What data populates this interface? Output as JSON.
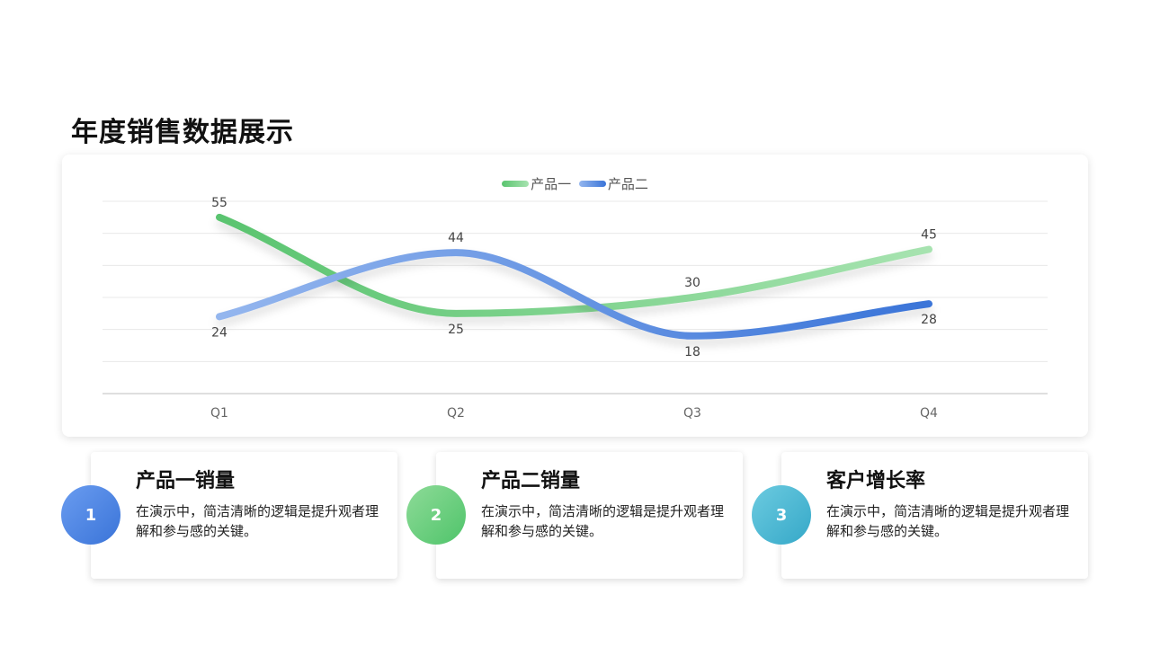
{
  "page": {
    "title": "年度销售数据展示"
  },
  "chart_data": {
    "type": "line",
    "categories": [
      "Q1",
      "Q2",
      "Q3",
      "Q4"
    ],
    "series": [
      {
        "name": "产品一",
        "values": [
          55,
          25,
          30,
          45
        ],
        "color_start": "#5ac46f",
        "color_end": "#a7e3b0"
      },
      {
        "name": "产品二",
        "values": [
          24,
          44,
          18,
          28
        ],
        "color_start": "#94b6ee",
        "color_end": "#3a74d8"
      }
    ],
    "title": "",
    "xlabel": "",
    "ylabel": "",
    "ylim": [
      0,
      60
    ],
    "grid": true,
    "smooth": true,
    "legend": "top-center",
    "data_labels": true
  },
  "cards": [
    {
      "number": "1",
      "title": "产品一销量",
      "desc": "在演示中，简洁清晰的逻辑是提升观者理解和参与感的关键。",
      "gradient_from": "#6a9cf0",
      "gradient_to": "#3a74d8"
    },
    {
      "number": "2",
      "title": "产品二销量",
      "desc": "在演示中，简洁清晰的逻辑是提升观者理解和参与感的关键。",
      "gradient_from": "#8edb98",
      "gradient_to": "#4fc46a"
    },
    {
      "number": "3",
      "title": "客户增长率",
      "desc": "在演示中，简洁清晰的逻辑是提升观者理解和参与感的关键。",
      "gradient_from": "#6ccbe0",
      "gradient_to": "#35a8c8"
    }
  ]
}
